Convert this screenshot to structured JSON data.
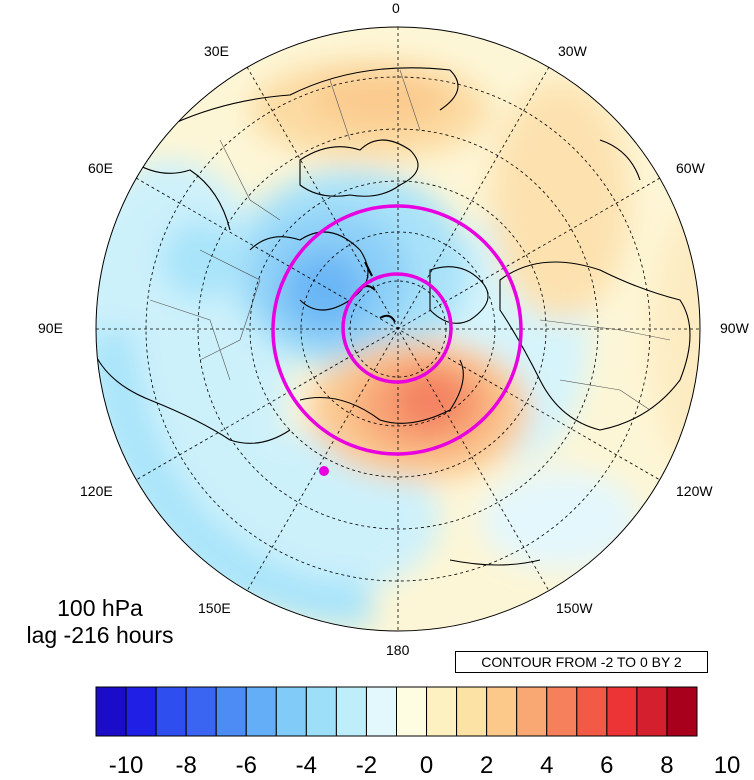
{
  "map": {
    "longitude_labels": [
      "0",
      "30W",
      "60W",
      "90W",
      "120W",
      "150W",
      "180",
      "150E",
      "120E",
      "90E",
      "60E",
      "30E"
    ],
    "caption_level": "100 hPa",
    "caption_lag": "lag -216 hours",
    "contour_info": "CONTOUR FROM -2 TO 0 BY 2"
  },
  "colorbar": {
    "tick_labels": [
      "-10",
      "-8",
      "-6",
      "-4",
      "-2",
      "0",
      "2",
      "4",
      "6",
      "8",
      "10"
    ],
    "colors": [
      "#1a0cc8",
      "#1f1fe6",
      "#2f4ef0",
      "#3a64f2",
      "#4d8cf5",
      "#63aef6",
      "#80cbf7",
      "#9ddff8",
      "#bdeefa",
      "#e2f8fc",
      "#fefde2",
      "#fdf1c2",
      "#fde2a5",
      "#fcc98a",
      "#f9a773",
      "#f6805c",
      "#f35a45",
      "#ec3336",
      "#d41f2e",
      "#a8001c"
    ],
    "highlight_color": "#e800e0"
  }
}
